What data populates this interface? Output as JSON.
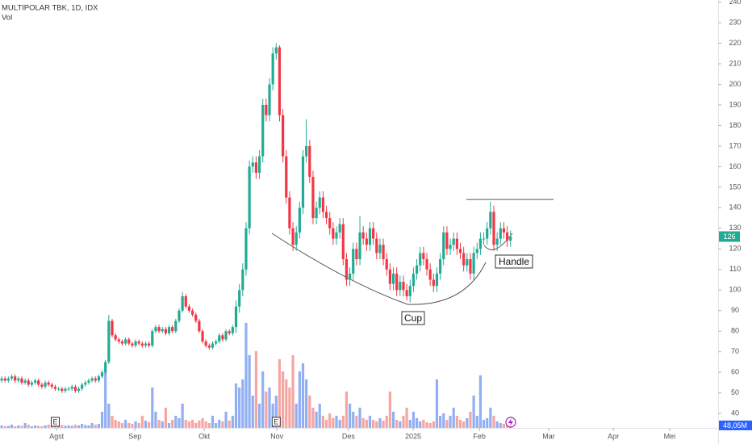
{
  "chart_data": {
    "type": "candlestick",
    "title": "MULTIPOLAR TBK, 1D, IDX",
    "volume_title": "Vol",
    "open": [
      56,
      57,
      56,
      57,
      58,
      56,
      57,
      55,
      56,
      54,
      55,
      56,
      54,
      53,
      55,
      54,
      53,
      52,
      52,
      51,
      52,
      52,
      53,
      51,
      52,
      54,
      55,
      56,
      57,
      56,
      58,
      60,
      65,
      85,
      78,
      76,
      75,
      74,
      76,
      74,
      73,
      75,
      74,
      73,
      74,
      73,
      80,
      82,
      80,
      81,
      79,
      82,
      80,
      85,
      90,
      97,
      92,
      90,
      88,
      85,
      80,
      75,
      73,
      72,
      74,
      75,
      78,
      76,
      80,
      79,
      82,
      92,
      100,
      110,
      130,
      160,
      162,
      157,
      165,
      190,
      185,
      200,
      215,
      218,
      185,
      165,
      145,
      130,
      122,
      128,
      140,
      165,
      170,
      155,
      135,
      140,
      145,
      138,
      135,
      130,
      125,
      128,
      132,
      115,
      105,
      108,
      120,
      115,
      128,
      125,
      122,
      130,
      125,
      118,
      122,
      115,
      110,
      103,
      108,
      100,
      104,
      100,
      97,
      102,
      108,
      112,
      118,
      115,
      110,
      105,
      102,
      108,
      115,
      128,
      120,
      122,
      125,
      120,
      118,
      112,
      115,
      108,
      118,
      120,
      125,
      125,
      130,
      138,
      122,
      125,
      130,
      128,
      124
    ],
    "high": [
      58,
      58,
      58,
      59,
      59,
      58,
      58,
      57,
      57,
      56,
      57,
      57,
      55,
      56,
      56,
      55,
      54,
      53,
      53,
      53,
      53,
      54,
      54,
      53,
      55,
      56,
      57,
      58,
      58,
      59,
      61,
      66,
      88,
      86,
      79,
      77,
      76,
      77,
      77,
      75,
      76,
      76,
      75,
      75,
      75,
      81,
      83,
      83,
      82,
      82,
      83,
      83,
      86,
      91,
      99,
      98,
      93,
      91,
      89,
      86,
      81,
      76,
      74,
      75,
      76,
      79,
      79,
      81,
      81,
      83,
      95,
      103,
      113,
      133,
      163,
      165,
      165,
      168,
      193,
      193,
      203,
      218,
      220,
      219,
      188,
      168,
      148,
      133,
      131,
      143,
      168,
      183,
      173,
      158,
      143,
      148,
      148,
      141,
      138,
      133,
      131,
      135,
      135,
      118,
      111,
      123,
      123,
      136,
      131,
      128,
      133,
      133,
      128,
      125,
      125,
      118,
      113,
      111,
      111,
      107,
      107,
      103,
      105,
      111,
      115,
      121,
      121,
      118,
      113,
      108,
      111,
      118,
      131,
      131,
      125,
      128,
      128,
      123,
      121,
      118,
      118,
      121,
      123,
      128,
      128,
      133,
      143,
      141,
      128,
      133,
      133,
      131,
      129
    ],
    "low": [
      55,
      55,
      55,
      56,
      55,
      55,
      54,
      54,
      53,
      53,
      54,
      53,
      52,
      52,
      53,
      52,
      51,
      51,
      50,
      50,
      51,
      51,
      50,
      50,
      51,
      53,
      54,
      55,
      55,
      55,
      57,
      59,
      64,
      77,
      75,
      74,
      73,
      73,
      73,
      72,
      72,
      73,
      72,
      72,
      72,
      72,
      79,
      79,
      79,
      78,
      78,
      79,
      79,
      84,
      89,
      91,
      89,
      87,
      84,
      79,
      74,
      72,
      71,
      71,
      73,
      74,
      75,
      75,
      78,
      78,
      79,
      89,
      97,
      107,
      127,
      157,
      154,
      154,
      162,
      182,
      182,
      197,
      212,
      182,
      162,
      142,
      127,
      119,
      119,
      125,
      137,
      162,
      152,
      132,
      132,
      137,
      135,
      132,
      127,
      122,
      122,
      125,
      112,
      102,
      102,
      105,
      112,
      112,
      122,
      119,
      119,
      122,
      115,
      115,
      112,
      107,
      100,
      100,
      97,
      97,
      97,
      95,
      94,
      99,
      105,
      109,
      112,
      107,
      102,
      99,
      99,
      105,
      112,
      117,
      117,
      119,
      117,
      115,
      109,
      109,
      105,
      105,
      115,
      117,
      122,
      122,
      127,
      119,
      119,
      122,
      125,
      121,
      121
    ],
    "close": [
      57,
      56,
      57,
      58,
      56,
      57,
      55,
      56,
      54,
      55,
      56,
      54,
      53,
      55,
      54,
      53,
      52,
      52,
      51,
      52,
      52,
      53,
      51,
      52,
      54,
      55,
      56,
      57,
      56,
      58,
      60,
      65,
      85,
      78,
      76,
      75,
      74,
      76,
      74,
      73,
      75,
      74,
      73,
      74,
      73,
      80,
      82,
      80,
      81,
      79,
      82,
      80,
      85,
      90,
      97,
      92,
      90,
      88,
      85,
      80,
      75,
      73,
      72,
      74,
      75,
      78,
      76,
      80,
      79,
      82,
      92,
      100,
      110,
      130,
      160,
      162,
      157,
      165,
      190,
      185,
      200,
      215,
      218,
      185,
      165,
      145,
      130,
      122,
      128,
      140,
      165,
      170,
      155,
      135,
      140,
      145,
      138,
      135,
      130,
      125,
      128,
      132,
      115,
      105,
      108,
      120,
      115,
      128,
      125,
      122,
      130,
      125,
      118,
      122,
      115,
      110,
      103,
      108,
      100,
      104,
      100,
      97,
      102,
      108,
      112,
      118,
      115,
      110,
      105,
      102,
      108,
      115,
      128,
      120,
      122,
      125,
      120,
      118,
      112,
      115,
      108,
      118,
      120,
      125,
      125,
      130,
      138,
      122,
      125,
      130,
      128,
      124,
      126
    ],
    "volume": [
      30,
      20,
      25,
      40,
      20,
      30,
      25,
      60,
      40,
      20,
      30,
      25,
      20,
      30,
      40,
      25,
      20,
      30,
      35,
      25,
      30,
      25,
      40,
      30,
      50,
      35,
      30,
      60,
      40,
      50,
      200,
      700,
      300,
      150,
      100,
      80,
      60,
      100,
      60,
      50,
      80,
      60,
      150,
      90,
      70,
      500,
      200,
      100,
      80,
      250,
      60,
      100,
      150,
      120,
      300,
      100,
      80,
      100,
      60,
      90,
      120,
      80,
      60,
      150,
      60,
      100,
      80,
      200,
      90,
      150,
      550,
      500,
      600,
      1300,
      900,
      400,
      950,
      300,
      700,
      450,
      500,
      300,
      400,
      850,
      700,
      600,
      500,
      900,
      300,
      700,
      800,
      600,
      400,
      250,
      200,
      300,
      150,
      100,
      180,
      120,
      150,
      100,
      150,
      450,
      300,
      200,
      150,
      250,
      120,
      100,
      150,
      100,
      80,
      120,
      90,
      150,
      450,
      200,
      100,
      80,
      150,
      250,
      100,
      200,
      120,
      80,
      100,
      70,
      60,
      80,
      600,
      150,
      180,
      100,
      150,
      250,
      150,
      100,
      80,
      120,
      200,
      400,
      150,
      650,
      100,
      120,
      250,
      150,
      80,
      60,
      50,
      40,
      48.05
    ],
    "last_volume_label": "48,05M",
    "up_color": "#22ab94",
    "down_color": "#f23645",
    "volume_up_color": "#91aff2",
    "volume_down_color": "#f5a6a3",
    "xlim": [
      -0.5,
      214
    ],
    "ylim": [
      33,
      241
    ],
    "vlim": [
      0,
      1400
    ],
    "xticks": [
      {
        "value": 16.4,
        "label": "Agst"
      },
      {
        "value": 39.8,
        "label": "Sep"
      },
      {
        "value": 60.5,
        "label": "Okt"
      },
      {
        "value": 82.2,
        "label": "Nov"
      },
      {
        "value": 103.6,
        "label": "Des"
      },
      {
        "value": 122.9,
        "label": "2025"
      },
      {
        "value": 142.7,
        "label": "Feb"
      },
      {
        "value": 163.4,
        "label": "Mar"
      },
      {
        "value": 182.7,
        "label": "Apr"
      },
      {
        "value": 199.5,
        "label": "Mei"
      }
    ],
    "yticks": [
      40,
      50,
      60,
      70,
      80,
      90,
      100,
      110,
      120,
      130,
      140,
      150,
      160,
      170,
      180,
      190,
      200,
      210,
      220,
      230,
      240
    ],
    "events": [
      {
        "x": 16,
        "label": "E"
      },
      {
        "x": 82,
        "label": "E"
      }
    ],
    "resistance": 144,
    "cup_label": "Cup",
    "handle_label": "Handle",
    "grid": false
  }
}
